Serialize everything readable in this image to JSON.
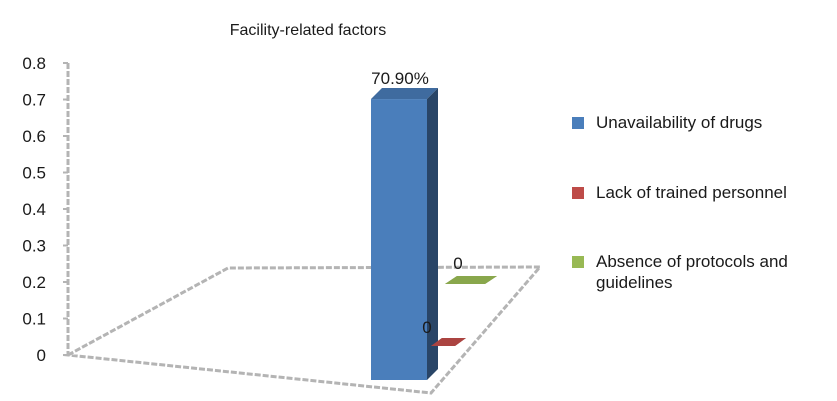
{
  "chart_data": {
    "type": "bar",
    "title": "Facility-related factors",
    "categories": [
      "Unavailability of drugs",
      "Lack of trained personnel",
      "Absence of protocols and guidelines"
    ],
    "values": [
      0.709,
      0,
      0
    ],
    "data_labels": [
      "70.90%",
      "0",
      "0"
    ],
    "colors": [
      "#4a7ebb",
      "#be4b48",
      "#98b954"
    ],
    "y_ticks": [
      "0",
      "0.1",
      "0.2",
      "0.3",
      "0.4",
      "0.5",
      "0.6",
      "0.7",
      "0.8"
    ],
    "ylim": [
      0,
      0.8
    ],
    "legend_position": "right",
    "grid": false,
    "style": "3d"
  }
}
